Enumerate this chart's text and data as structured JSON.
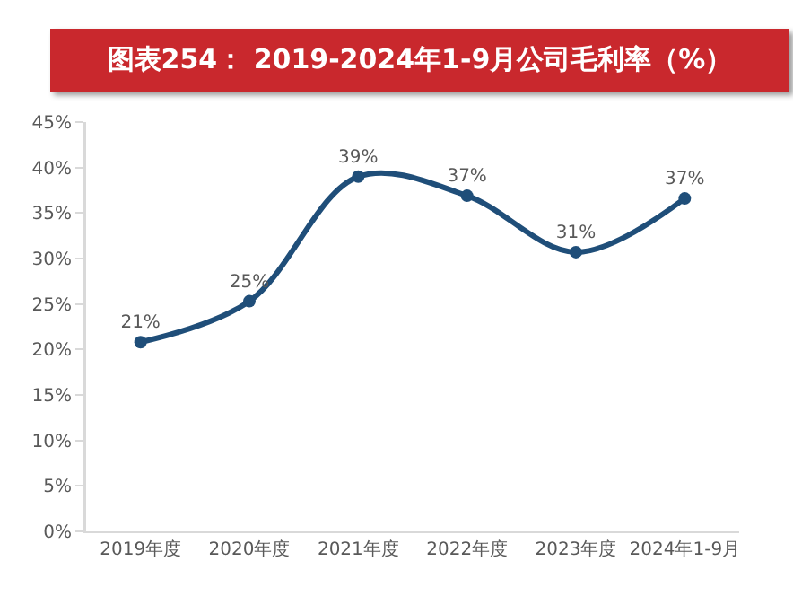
{
  "chart_data": {
    "type": "line",
    "title": "图表254： 2019-2024年1-9月公司毛利率（%）",
    "categories": [
      "2019年度",
      "2020年度",
      "2021年度",
      "2022年度",
      "2023年度",
      "2024年1-9月"
    ],
    "series": [
      {
        "color": "#1f4e79",
        "values": [
          20.8,
          25.3,
          39.0,
          36.9,
          30.7,
          36.6
        ],
        "value_labels": [
          "21%",
          "25%",
          "39%",
          "37%",
          "31%",
          "37%"
        ]
      }
    ],
    "ylim": [
      0,
      45
    ],
    "yticks": [
      {
        "value": 0,
        "label": "0%"
      },
      {
        "value": 5,
        "label": "5%"
      },
      {
        "value": 10,
        "label": "10%"
      },
      {
        "value": 15,
        "label": "15%"
      },
      {
        "value": 20,
        "label": "20%"
      },
      {
        "value": 25,
        "label": "25%"
      },
      {
        "value": 30,
        "label": "30%"
      },
      {
        "value": 35,
        "label": "35%"
      },
      {
        "value": 40,
        "label": "40%"
      },
      {
        "value": 45,
        "label": "45%"
      }
    ],
    "grid": false,
    "marker": "circle",
    "line_style": "solid"
  }
}
